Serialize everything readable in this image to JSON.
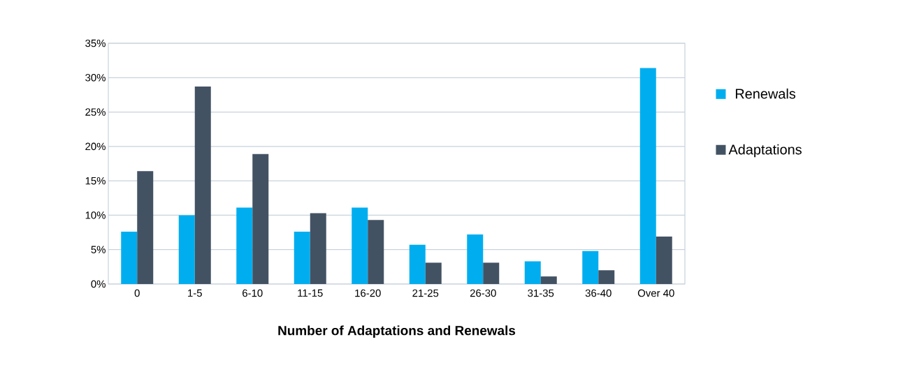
{
  "chart_data": {
    "type": "bar",
    "xlabel": "Number of Adaptations and Renewals",
    "categories": [
      "0",
      "1-5",
      "6-10",
      "11-15",
      "16-20",
      "21-25",
      "26-30",
      "31-35",
      "36-40",
      "Over 40"
    ],
    "series": [
      {
        "name": "Renewals",
        "color": "#00aeef",
        "values": [
          7.6,
          10.0,
          11.1,
          7.6,
          11.1,
          5.7,
          7.2,
          3.3,
          4.8,
          31.4
        ]
      },
      {
        "name": "Adaptations",
        "color": "#435263",
        "values": [
          16.4,
          28.7,
          18.9,
          10.3,
          9.3,
          3.1,
          3.1,
          1.1,
          2.0,
          6.9
        ]
      }
    ],
    "ylim": [
      0,
      35
    ],
    "yticks": [
      {
        "value": 0,
        "label": "0%"
      },
      {
        "value": 5,
        "label": "5%"
      },
      {
        "value": 10,
        "label": "10%"
      },
      {
        "value": 15,
        "label": "15%"
      },
      {
        "value": 20,
        "label": "20%"
      },
      {
        "value": 25,
        "label": "25%"
      },
      {
        "value": 30,
        "label": "30%"
      },
      {
        "value": 35,
        "label": "35%"
      }
    ],
    "grid": "y",
    "legend": "right"
  }
}
